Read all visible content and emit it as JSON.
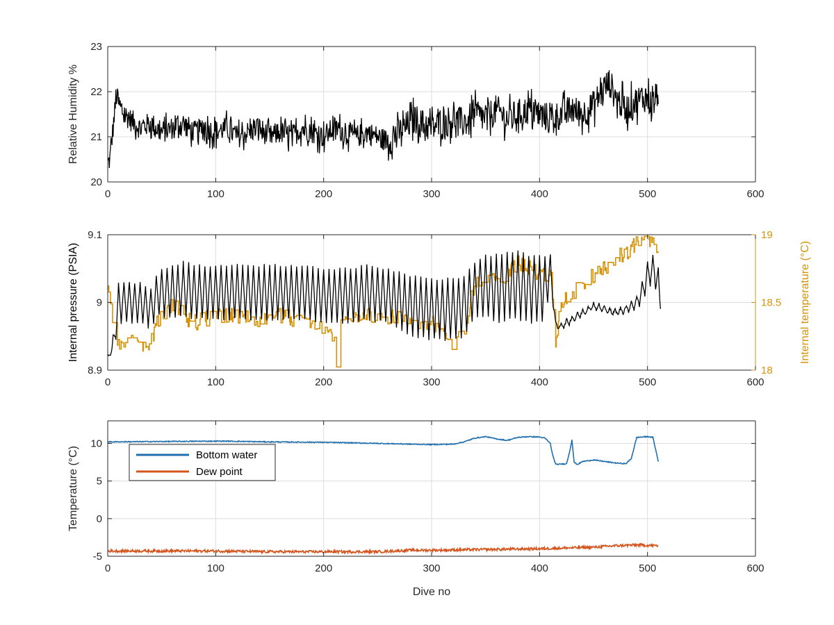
{
  "colors": {
    "axis": "#262626",
    "grid": "#dcdcdc",
    "black_series": "#000000",
    "gold_series": "#d4930a",
    "blue_series": "#1f6fb0",
    "orange_series": "#d4541c"
  },
  "chart_data": [
    {
      "type": "line",
      "ylabel": "Relative Humidity %",
      "xlim": [
        0,
        600
      ],
      "ylim": [
        20,
        23
      ],
      "xticks": [
        "0",
        "100",
        "200",
        "300",
        "400",
        "500",
        "600"
      ],
      "yticks": [
        "20",
        "21",
        "22",
        "23"
      ],
      "grid": true,
      "series": [
        {
          "x": [
            0,
            2,
            5,
            8,
            12,
            20,
            30,
            40,
            50,
            60,
            70,
            80,
            90,
            100,
            110,
            120,
            130,
            140,
            150,
            160,
            170,
            180,
            190,
            200,
            210,
            220,
            230,
            240,
            250,
            260,
            265,
            270,
            280,
            285,
            290,
            300,
            310,
            320,
            330,
            340,
            350,
            360,
            370,
            380,
            390,
            400,
            410,
            420,
            430,
            440,
            450,
            460,
            465,
            470,
            480,
            490,
            500,
            505,
            510
          ],
          "y": [
            20.4,
            20.5,
            21.2,
            21.9,
            21.6,
            21.4,
            21.2,
            21.3,
            21.1,
            21.2,
            21.3,
            21.1,
            21.2,
            21.1,
            21.2,
            21.0,
            21.1,
            21.2,
            21.0,
            21.1,
            21.0,
            21.2,
            21.1,
            21.0,
            21.2,
            21.1,
            21.0,
            21.1,
            21.0,
            20.9,
            21.0,
            21.1,
            21.3,
            21.4,
            21.3,
            21.2,
            21.3,
            21.4,
            21.3,
            21.5,
            21.4,
            21.6,
            21.4,
            21.5,
            21.6,
            21.5,
            21.4,
            21.5,
            21.6,
            21.5,
            21.7,
            22.1,
            22.2,
            21.9,
            21.6,
            21.8,
            21.9,
            21.7,
            22.0
          ]
        }
      ]
    },
    {
      "type": "line",
      "ylabel": "Internal pressure (PSIA)",
      "ylabel_right": "Internal temperature (°C)",
      "xlim": [
        0,
        600
      ],
      "ylim": [
        8.9,
        9.1
      ],
      "ylim_right": [
        18,
        19
      ],
      "xticks": [
        "0",
        "100",
        "200",
        "300",
        "400",
        "500",
        "600"
      ],
      "yticks": [
        "8.9",
        "9",
        "9.1"
      ],
      "yticks_right": [
        "18",
        "18.5",
        "19"
      ],
      "grid": true,
      "series": [
        {
          "axis": "left",
          "x": [
            0,
            5,
            10,
            20,
            30,
            40,
            45,
            50,
            60,
            70,
            80,
            100,
            120,
            140,
            160,
            180,
            200,
            220,
            240,
            260,
            280,
            300,
            320,
            330,
            340,
            350,
            360,
            370,
            380,
            390,
            400,
            405,
            410,
            415,
            420,
            430,
            440,
            450,
            460,
            470,
            480,
            490,
            495,
            500,
            505,
            510,
            512
          ],
          "y": [
            8.92,
            8.95,
            9.03,
            9.03,
            9.03,
            9.02,
            9.04,
            9.05,
            9.055,
            9.06,
            9.055,
            9.055,
            9.055,
            9.055,
            9.055,
            9.055,
            9.05,
            9.05,
            9.055,
            9.05,
            9.04,
            9.035,
            9.035,
            9.04,
            9.06,
            9.07,
            9.07,
            9.075,
            9.075,
            9.07,
            9.07,
            9.07,
            9.07,
            8.97,
            8.97,
            8.98,
            8.99,
            9.0,
            8.995,
            8.99,
            8.995,
            9.01,
            9.03,
            9.06,
            9.07,
            9.05,
            9.0
          ],
          "spread": [
            0,
            0.03,
            0.06,
            0.06,
            0.06,
            0.06,
            0.06,
            0.07,
            0.08,
            0.08,
            0.08,
            0.08,
            0.08,
            0.08,
            0.08,
            0.08,
            0.08,
            0.08,
            0.08,
            0.08,
            0.09,
            0.09,
            0.09,
            0.09,
            0.08,
            0.09,
            0.1,
            0.1,
            0.1,
            0.1,
            0.1,
            0.1,
            0.04,
            0.01,
            0.01,
            0.01,
            0.01,
            0.01,
            0.01,
            0.01,
            0.01,
            0.02,
            0.03,
            0.04,
            0.04,
            0.04,
            0.01
          ]
        },
        {
          "axis": "right",
          "x": [
            0,
            3,
            6,
            10,
            20,
            30,
            40,
            45,
            50,
            60,
            70,
            80,
            100,
            120,
            140,
            160,
            180,
            200,
            210,
            212,
            214,
            220,
            240,
            260,
            280,
            300,
            310,
            320,
            330,
            340,
            350,
            360,
            370,
            380,
            390,
            400,
            405,
            410,
            413,
            415,
            420,
            430,
            440,
            450,
            460,
            470,
            480,
            490,
            495,
            500,
            505,
            510
          ],
          "y": [
            18.6,
            18.4,
            18.25,
            18.2,
            18.25,
            18.2,
            18.2,
            18.35,
            18.4,
            18.5,
            18.4,
            18.35,
            18.4,
            18.4,
            18.35,
            18.4,
            18.35,
            18.3,
            18.25,
            18.05,
            18.3,
            18.35,
            18.4,
            18.4,
            18.35,
            18.35,
            18.3,
            18.15,
            18.3,
            18.65,
            18.65,
            18.7,
            18.7,
            18.8,
            18.75,
            18.7,
            18.7,
            18.7,
            18.5,
            18.2,
            18.5,
            18.55,
            18.65,
            18.7,
            18.75,
            18.85,
            18.85,
            18.95,
            19.0,
            18.95,
            18.95,
            18.8
          ]
        }
      ]
    },
    {
      "type": "line",
      "xlabel": "Dive no",
      "ylabel": "Temperature (°C)",
      "xlim": [
        0,
        600
      ],
      "ylim": [
        -5,
        13
      ],
      "xticks": [
        "0",
        "100",
        "200",
        "300",
        "400",
        "500",
        "600"
      ],
      "yticks": [
        "-5",
        "0",
        "5",
        "10"
      ],
      "grid": true,
      "legend": "top-left",
      "series": [
        {
          "name": "Bottom water",
          "x": [
            0,
            50,
            100,
            110,
            150,
            200,
            250,
            280,
            300,
            320,
            330,
            340,
            350,
            360,
            370,
            380,
            390,
            400,
            405,
            410,
            412,
            415,
            425,
            428,
            430,
            432,
            435,
            440,
            450,
            460,
            470,
            480,
            485,
            490,
            500,
            505,
            510
          ],
          "y": [
            10.2,
            10.25,
            10.3,
            10.3,
            10.2,
            10.15,
            10.0,
            9.9,
            9.85,
            9.9,
            10.2,
            10.7,
            10.9,
            10.6,
            10.4,
            10.8,
            10.9,
            10.85,
            10.7,
            10.0,
            8.5,
            7.2,
            7.3,
            9.0,
            10.5,
            7.5,
            7.2,
            7.6,
            7.8,
            7.6,
            7.4,
            7.3,
            8.0,
            10.8,
            10.9,
            10.8,
            7.6
          ]
        },
        {
          "name": "Dew point",
          "x": [
            0,
            50,
            100,
            150,
            200,
            250,
            280,
            300,
            350,
            400,
            450,
            470,
            490,
            510
          ],
          "y": [
            -4.3,
            -4.3,
            -4.3,
            -4.4,
            -4.4,
            -4.4,
            -4.2,
            -4.2,
            -4.1,
            -4.0,
            -3.8,
            -3.6,
            -3.5,
            -3.6
          ]
        }
      ]
    }
  ]
}
